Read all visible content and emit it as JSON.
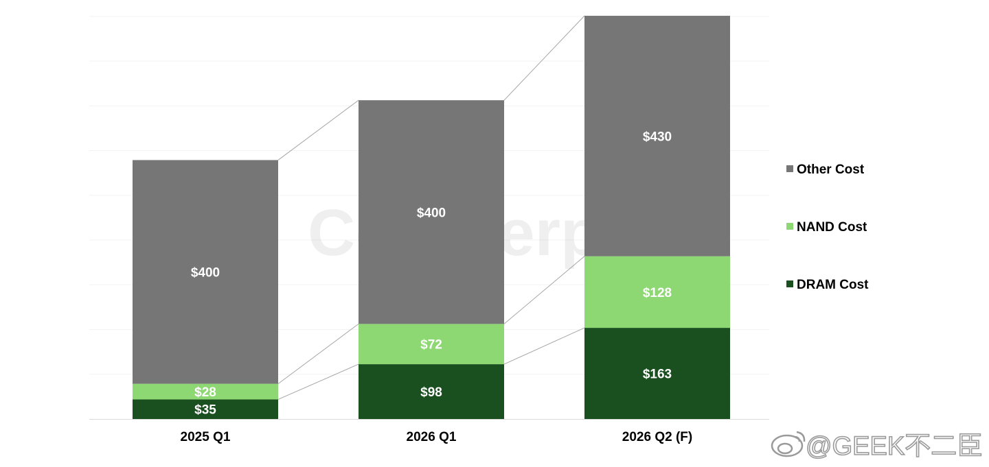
{
  "chart_data": {
    "type": "bar",
    "stacked": true,
    "categories": [
      "2025 Q1",
      "2026 Q1",
      "2026 Q2 (F)"
    ],
    "series": [
      {
        "name": "DRAM Cost",
        "values": [
          35,
          98,
          163
        ],
        "labels": [
          "$35",
          "$98",
          "$163"
        ]
      },
      {
        "name": "NAND Cost",
        "values": [
          28,
          72,
          128
        ],
        "labels": [
          "$28",
          "$72",
          "$128"
        ]
      },
      {
        "name": "Other Cost",
        "values": [
          400,
          400,
          430
        ],
        "labels": [
          "$400",
          "$400",
          "$430"
        ]
      }
    ],
    "ylim": [
      0,
      721
    ],
    "grid": true,
    "legend": {
      "placement": "right",
      "order": [
        "Other Cost",
        "NAND Cost",
        "DRAM Cost"
      ]
    },
    "connector_lines": true
  },
  "colors": {
    "DRAM Cost": "#1a4f1f",
    "NAND Cost": "#8ed873",
    "Other Cost": "#767676",
    "label_text": "#ffffff",
    "axis_text": "#000000"
  },
  "watermarks": {
    "background_logo_text": "Counterpoint",
    "corner_text": "@GEEK不二臣"
  }
}
